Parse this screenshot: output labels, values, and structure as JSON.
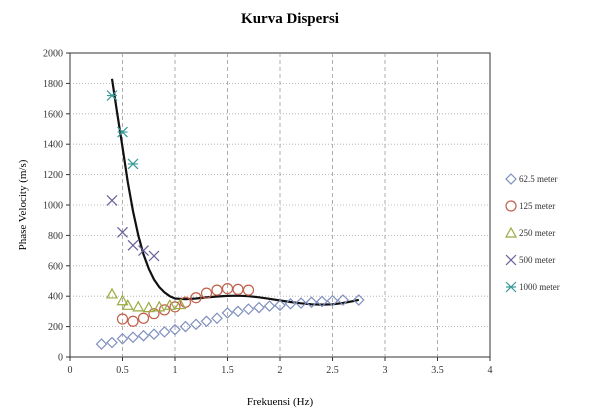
{
  "chart_data": {
    "type": "scatter",
    "title": "Kurva Dispersi",
    "xlabel": "Frekuensi (Hz)",
    "ylabel": "Phase Velocity (m/s)",
    "xlim": [
      0,
      4
    ],
    "ylim": [
      0,
      2000
    ],
    "x_ticks": [
      "0",
      "0.5",
      "1",
      "1.5",
      "2",
      "2.5",
      "3",
      "3.5",
      "4"
    ],
    "y_ticks": [
      "0",
      "200",
      "400",
      "600",
      "800",
      "1000",
      "1200",
      "1400",
      "1600",
      "1800",
      "2000"
    ],
    "grid": {
      "x": "dashed",
      "y": "dotted"
    },
    "legend_position": "right",
    "series": [
      {
        "name": "62.5 meter",
        "marker": "diamond",
        "color": "#7f8fbf",
        "points": [
          [
            0.3,
            85
          ],
          [
            0.4,
            95
          ],
          [
            0.5,
            120
          ],
          [
            0.6,
            130
          ],
          [
            0.7,
            140
          ],
          [
            0.8,
            150
          ],
          [
            0.9,
            165
          ],
          [
            1.0,
            180
          ],
          [
            1.1,
            200
          ],
          [
            1.2,
            215
          ],
          [
            1.3,
            235
          ],
          [
            1.4,
            255
          ],
          [
            1.5,
            290
          ],
          [
            1.6,
            300
          ],
          [
            1.7,
            315
          ],
          [
            1.8,
            325
          ],
          [
            1.9,
            335
          ],
          [
            2.0,
            340
          ],
          [
            2.1,
            350
          ],
          [
            2.2,
            355
          ],
          [
            2.3,
            360
          ],
          [
            2.4,
            365
          ],
          [
            2.5,
            370
          ],
          [
            2.6,
            375
          ],
          [
            2.75,
            375
          ]
        ]
      },
      {
        "name": "125 meter",
        "marker": "circle",
        "color": "#c0604a",
        "points": [
          [
            0.5,
            250
          ],
          [
            0.6,
            235
          ],
          [
            0.7,
            255
          ],
          [
            0.8,
            285
          ],
          [
            0.9,
            310
          ],
          [
            1.0,
            330
          ],
          [
            1.1,
            360
          ],
          [
            1.2,
            390
          ],
          [
            1.3,
            420
          ],
          [
            1.4,
            440
          ],
          [
            1.5,
            450
          ],
          [
            1.6,
            445
          ],
          [
            1.7,
            440
          ]
        ]
      },
      {
        "name": "250 meter",
        "marker": "triangle",
        "color": "#9aaa40",
        "points": [
          [
            0.4,
            415
          ],
          [
            0.5,
            370
          ],
          [
            0.55,
            340
          ],
          [
            0.65,
            330
          ],
          [
            0.75,
            325
          ],
          [
            0.85,
            330
          ],
          [
            0.95,
            340
          ],
          [
            1.05,
            345
          ]
        ]
      },
      {
        "name": "500 meter",
        "marker": "x",
        "color": "#6a5f9a",
        "points": [
          [
            0.4,
            1030
          ],
          [
            0.5,
            820
          ],
          [
            0.6,
            735
          ],
          [
            0.7,
            700
          ],
          [
            0.8,
            665
          ]
        ]
      },
      {
        "name": "1000 meter",
        "marker": "asterisk",
        "color": "#3a9a98",
        "points": [
          [
            0.4,
            1720
          ],
          [
            0.5,
            1480
          ],
          [
            0.6,
            1270
          ]
        ]
      }
    ],
    "trend_line": {
      "color": "#111111",
      "points": [
        [
          0.4,
          1830
        ],
        [
          0.45,
          1600
        ],
        [
          0.5,
          1380
        ],
        [
          0.55,
          1150
        ],
        [
          0.6,
          960
        ],
        [
          0.65,
          800
        ],
        [
          0.7,
          675
        ],
        [
          0.75,
          580
        ],
        [
          0.8,
          510
        ],
        [
          0.85,
          460
        ],
        [
          0.9,
          425
        ],
        [
          0.95,
          400
        ],
        [
          1.0,
          385
        ],
        [
          1.1,
          380
        ],
        [
          1.2,
          385
        ],
        [
          1.3,
          392
        ],
        [
          1.4,
          398
        ],
        [
          1.5,
          402
        ],
        [
          1.6,
          403
        ],
        [
          1.7,
          400
        ],
        [
          1.8,
          393
        ],
        [
          1.9,
          383
        ],
        [
          2.0,
          372
        ],
        [
          2.1,
          362
        ],
        [
          2.2,
          353
        ],
        [
          2.3,
          347
        ],
        [
          2.4,
          345
        ],
        [
          2.5,
          347
        ],
        [
          2.6,
          355
        ],
        [
          2.7,
          368
        ],
        [
          2.75,
          376
        ]
      ]
    }
  }
}
